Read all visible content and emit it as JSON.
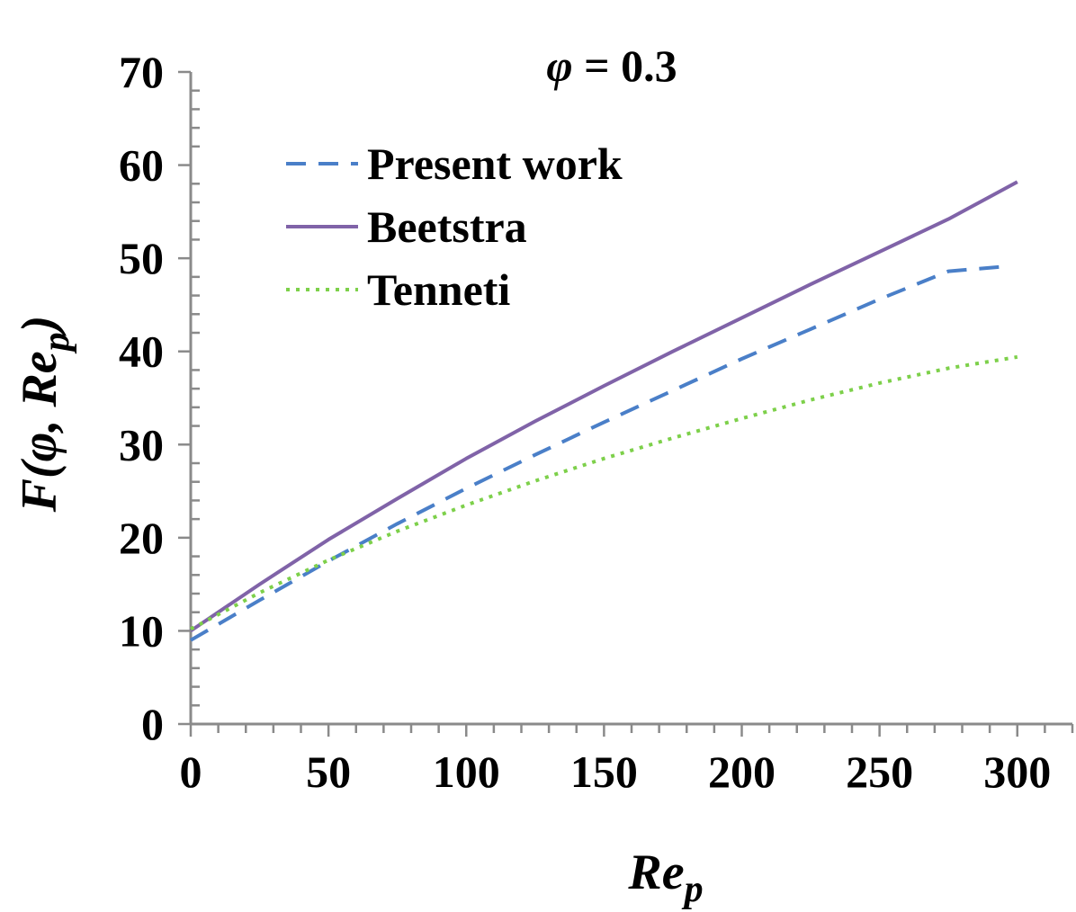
{
  "chart_data": {
    "type": "line",
    "title": "φ = 0.3",
    "title_italic_part": "φ",
    "title_rest": " = 0.3",
    "xlabel": "Re",
    "xlabel_sub": "p",
    "ylabel": "F(φ, Re",
    "ylabel_sub": "p",
    "ylabel_close": ")",
    "xlim": [
      0,
      320
    ],
    "ylim": [
      0,
      70
    ],
    "x_ticks": [
      0,
      50,
      100,
      150,
      200,
      250,
      300
    ],
    "x_tick_labels": [
      "0",
      "50",
      "100",
      "150",
      "200",
      "250",
      "300"
    ],
    "y_ticks": [
      0,
      10,
      20,
      30,
      40,
      50,
      60,
      70
    ],
    "y_tick_labels": [
      "0",
      "10",
      "20",
      "30",
      "40",
      "50",
      "60",
      "70"
    ],
    "x_minor_step": 10,
    "y_minor_step": 2,
    "grid": false,
    "legend_position": "upper-left",
    "series": [
      {
        "name": "Present work",
        "style": "dashed",
        "color": "#4a7fc8",
        "x": [
          0,
          25,
          50,
          75,
          100,
          125,
          150,
          175,
          200,
          225,
          250,
          275,
          295
        ],
        "y": [
          9.0,
          13.3,
          17.5,
          21.5,
          25.3,
          28.9,
          32.4,
          35.8,
          39.2,
          42.4,
          45.6,
          48.6,
          49.1
        ]
      },
      {
        "name": "Beetstra",
        "style": "solid",
        "color": "#8063a8",
        "x": [
          0,
          25,
          50,
          75,
          100,
          125,
          150,
          175,
          200,
          225,
          250,
          275,
          300
        ],
        "y": [
          10.0,
          15.0,
          19.8,
          24.2,
          28.5,
          32.5,
          36.3,
          40.0,
          43.6,
          47.2,
          50.7,
          54.2,
          58.2
        ]
      },
      {
        "name": "Tenneti",
        "style": "dotted",
        "color": "#7dd04a",
        "x": [
          0,
          25,
          50,
          75,
          100,
          125,
          150,
          175,
          200,
          225,
          250,
          275,
          300
        ],
        "y": [
          10.2,
          14.1,
          17.6,
          20.7,
          23.5,
          26.1,
          28.5,
          30.7,
          32.8,
          34.8,
          36.6,
          38.2,
          39.4
        ]
      }
    ]
  }
}
